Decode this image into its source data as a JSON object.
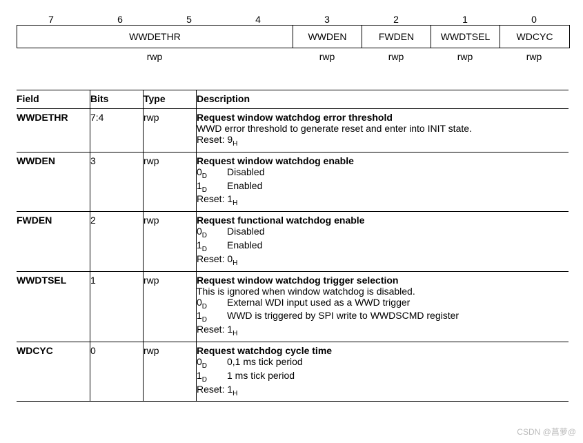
{
  "bits": {
    "numbers": [
      "7",
      "6",
      "5",
      "4",
      "3",
      "2",
      "1",
      "0"
    ],
    "boxes": [
      {
        "label": "WWDETHR",
        "span": 4,
        "access": "rwp"
      },
      {
        "label": "WWDEN",
        "span": 1,
        "access": "rwp"
      },
      {
        "label": "FWDEN",
        "span": 1,
        "access": "rwp"
      },
      {
        "label": "WWDTSEL",
        "span": 1,
        "access": "rwp"
      },
      {
        "label": "WDCYC",
        "span": 1,
        "access": "rwp"
      }
    ]
  },
  "table": {
    "headers": {
      "field": "Field",
      "bits": "Bits",
      "type": "Type",
      "desc": "Description"
    },
    "rows": [
      {
        "field": "WWDETHR",
        "bits": "7:4",
        "type": "rwp",
        "title": "Request window watchdog error threshold",
        "lines": [
          "WWD error threshold to generate reset and enter into INIT state."
        ],
        "reset": "Reset: 9",
        "reset_sub": "H"
      },
      {
        "field": "WWDEN",
        "bits": "3",
        "type": "rwp",
        "title": "Request window watchdog enable",
        "enums": [
          {
            "v": "0",
            "sub": "D",
            "t": "Disabled"
          },
          {
            "v": "1",
            "sub": "D",
            "t": "Enabled"
          }
        ],
        "reset": "Reset: 1",
        "reset_sub": "H"
      },
      {
        "field": "FWDEN",
        "bits": "2",
        "type": "rwp",
        "title": "Request functional watchdog enable",
        "enums": [
          {
            "v": "0",
            "sub": "D",
            "t": "Disabled"
          },
          {
            "v": "1",
            "sub": "D",
            "t": "Enabled"
          }
        ],
        "reset": "Reset: 0",
        "reset_sub": "H"
      },
      {
        "field": "WWDTSEL",
        "bits": "1",
        "type": "rwp",
        "title": "Request window watchdog trigger selection",
        "lines": [
          "This is ignored when window watchdog is disabled."
        ],
        "enums": [
          {
            "v": "0",
            "sub": "D",
            "t": "External WDI input used as a WWD trigger"
          },
          {
            "v": "1",
            "sub": "D",
            "t": "WWD is triggered by SPI write to WWDSCMD register"
          }
        ],
        "reset": "Reset: 1",
        "reset_sub": "H"
      },
      {
        "field": "WDCYC",
        "bits": "0",
        "type": "rwp",
        "title": "Request watchdog cycle time",
        "enums": [
          {
            "v": "0",
            "sub": "D",
            "t": "0,1 ms tick period"
          },
          {
            "v": "1",
            "sub": "D",
            "t": "1 ms tick period"
          }
        ],
        "reset": "Reset: 1",
        "reset_sub": "H"
      }
    ]
  },
  "watermark": "CSDN @菖萝@"
}
